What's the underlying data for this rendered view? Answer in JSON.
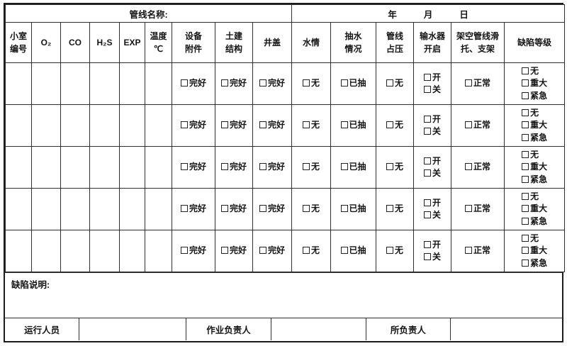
{
  "header": {
    "pipeline_name_label": "管线名称:",
    "date_parts": [
      "年",
      "月",
      "日"
    ]
  },
  "columns": [
    {
      "key": "chamber-number",
      "label": "小室\n编号",
      "options": []
    },
    {
      "key": "oxygen",
      "label": "O₂",
      "options": []
    },
    {
      "key": "carbon-monoxide",
      "label": "CO",
      "options": []
    },
    {
      "key": "hydrogen-sulfide",
      "label": "H₂S",
      "options": []
    },
    {
      "key": "explosive-gas",
      "label": "EXP",
      "options": []
    },
    {
      "key": "temperature",
      "label": "温度\n℃",
      "options": []
    },
    {
      "key": "equipment-accessories",
      "label": "设备\n附件",
      "options": [
        "完好"
      ]
    },
    {
      "key": "civil-structure",
      "label": "土建\n结构",
      "options": [
        "完好"
      ]
    },
    {
      "key": "manhole-cover",
      "label": "井盖",
      "options": [
        "完好"
      ]
    },
    {
      "key": "water-condition",
      "label": "水情",
      "options": [
        "无"
      ]
    },
    {
      "key": "pumping-status",
      "label": "抽水\n情况",
      "options": [
        "已抽"
      ]
    },
    {
      "key": "pipeline-occupation",
      "label": "管线\n占压",
      "options": [
        "无"
      ]
    },
    {
      "key": "water-feeder-switch",
      "label": "输水器\n开启",
      "options": [
        "开",
        "关"
      ]
    },
    {
      "key": "overhead-support",
      "label": "架空管线滑\n托、支架",
      "options": [
        "正常"
      ]
    },
    {
      "key": "defect-level",
      "label": "缺陷等级",
      "options": [
        "无",
        "重大",
        "紧急"
      ]
    }
  ],
  "data_row_count": 5,
  "footer": {
    "defect_note_label": "缺陷说明:",
    "signatures": [
      "运行人员",
      "作业负责人",
      "所负责人"
    ]
  }
}
